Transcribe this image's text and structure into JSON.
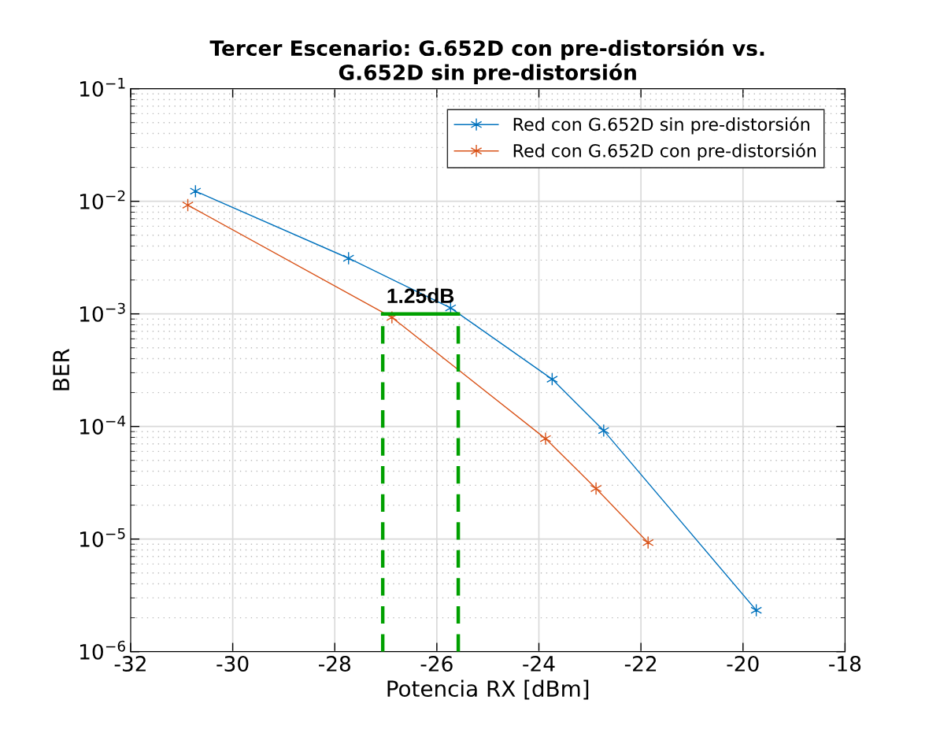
{
  "chart_data": {
    "type": "line",
    "title": "Tercer Escenario: G.652D con pre-distorsión vs.\nG.652D sin pre-distorsión",
    "xlabel": "Potencia RX [dBm]",
    "ylabel": "BER",
    "series": [
      {
        "name": "Red con G.652D sin pre-distorsión",
        "color": "#0072bd",
        "x": [
          -30.73,
          -27.73,
          -25.73,
          -23.74,
          -22.73,
          -19.74
        ],
        "values": [
          0.0123,
          0.00312,
          0.00113,
          0.000263,
          9.2e-05,
          2.33e-06
        ]
      },
      {
        "name": "Red con G.652D con pre-distorsión",
        "color": "#d95319",
        "x": [
          -30.88,
          -26.88,
          -23.87,
          -22.88,
          -21.86
        ],
        "values": [
          0.00925,
          0.00093,
          7.8e-05,
          2.81e-05,
          9.3e-06
        ]
      },
      {
        "color": "#00a000",
        "x": [
          -27.06,
          -27.06
        ],
        "values": [
          1e-06,
          0.001
        ],
        "line_style": "dashed",
        "marker": "none"
      },
      {
        "color": "#00a000",
        "x": [
          -27.06,
          -25.58
        ],
        "values": [
          0.001,
          0.001
        ],
        "line_style": "solid",
        "marker": "none"
      },
      {
        "color": "#00a000",
        "x": [
          -25.58,
          -25.58
        ],
        "values": [
          1e-06,
          0.001
        ],
        "line_style": "dashed",
        "marker": "none"
      }
    ],
    "annotations": [
      {
        "text": "1.25dB",
        "x": -26.32,
        "y": 0.001
      }
    ],
    "log": "y",
    "xlim": [
      -32,
      -18
    ],
    "xticks": [
      -32,
      -30,
      -28,
      -26,
      -24,
      -22,
      -20,
      -18
    ],
    "ylim": [
      1e-06,
      0.1
    ],
    "yticks": [
      {
        "value": 1e-06,
        "label": "10$^{−6}$"
      },
      {
        "value": 1e-05,
        "label": "10$^{−5}$"
      },
      {
        "value": 0.0001,
        "label": "10$^{−4}$"
      },
      {
        "value": 0.001,
        "label": "10$^{−3}$"
      },
      {
        "value": 0.01,
        "label": "10$^{−2}$"
      },
      {
        "value": 0.1,
        "label": "10$^{−1}$"
      }
    ],
    "grid": true,
    "legend": "top right",
    "marker": "cross",
    "line_style": "solid"
  }
}
